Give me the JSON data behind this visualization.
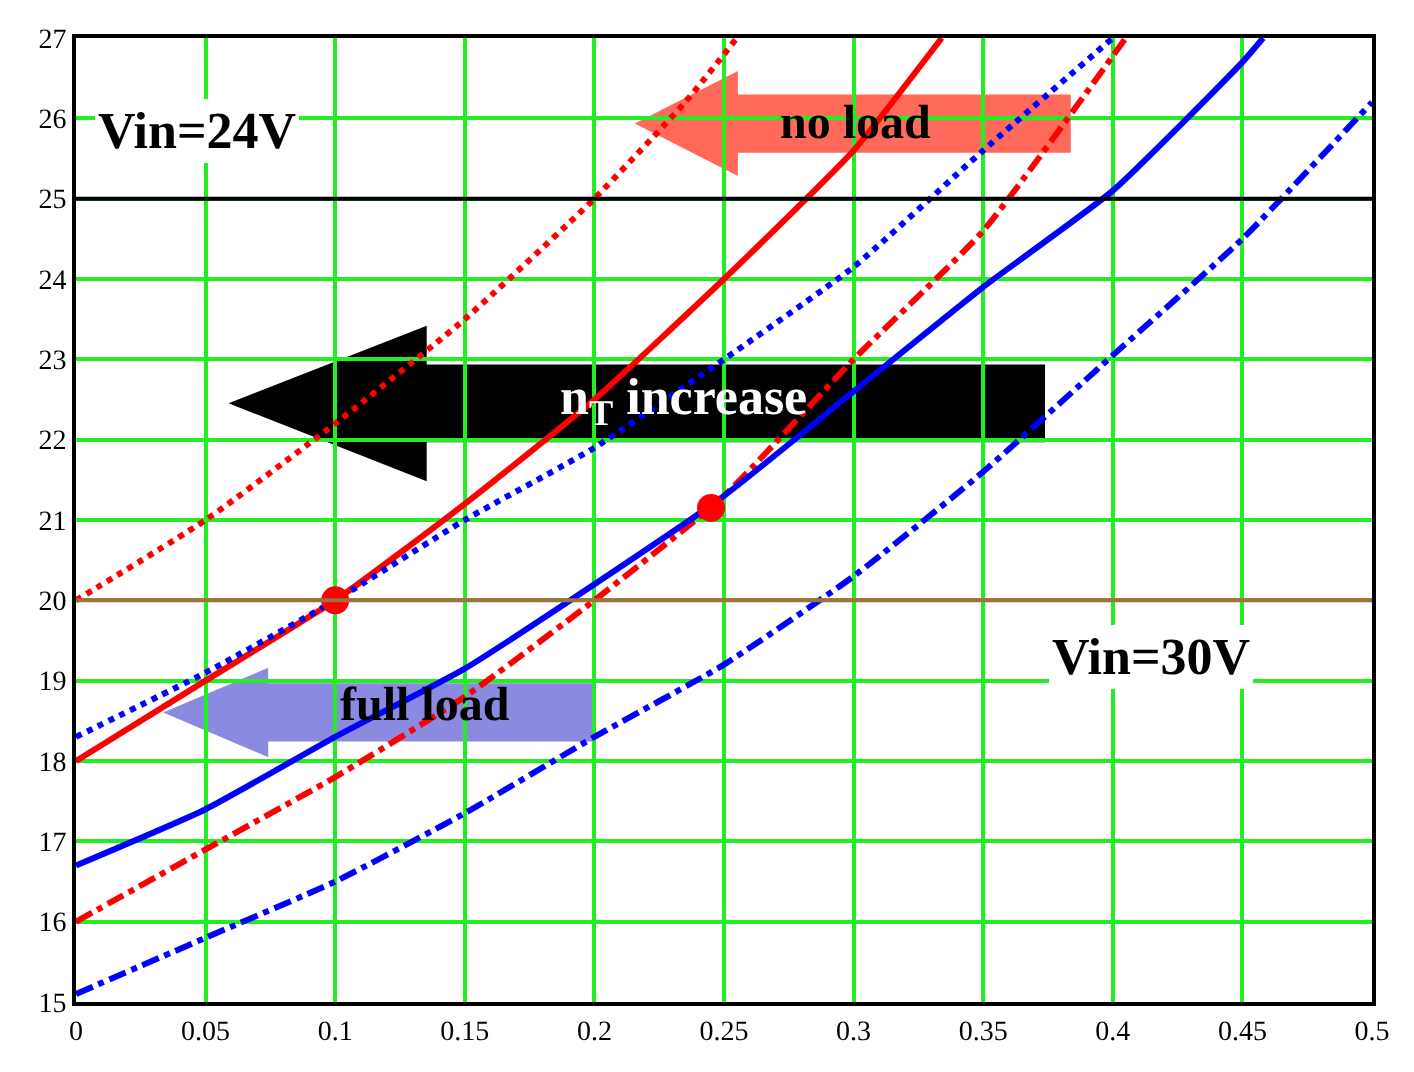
{
  "chart_data": {
    "type": "line",
    "xlim": [
      0,
      0.5
    ],
    "ylim": [
      15,
      27
    ],
    "xticks": [
      0,
      0.05,
      0.1,
      0.15,
      0.2,
      0.25,
      0.3,
      0.35,
      0.4,
      0.45,
      0.5
    ],
    "yticks": [
      15,
      16,
      17,
      18,
      19,
      20,
      21,
      22,
      23,
      24,
      25,
      26,
      27
    ],
    "grid": true,
    "marker": "none",
    "series": [
      {
        "color": "#ff0000",
        "line_style": "dotted",
        "x": [
          0,
          0.05,
          0.1,
          0.15,
          0.2,
          0.235,
          0.255
        ],
        "values": [
          20,
          21,
          22.2,
          23.5,
          25,
          26.2,
          27
        ]
      },
      {
        "color": "#ff0000",
        "line_style": "solid",
        "x": [
          0,
          0.05,
          0.1,
          0.15,
          0.2,
          0.25,
          0.3,
          0.334
        ],
        "values": [
          18,
          19,
          20,
          21.2,
          22.5,
          24,
          25.6,
          27
        ]
      },
      {
        "color": "#0000ff",
        "line_style": "dotted",
        "x": [
          0,
          0.05,
          0.1,
          0.15,
          0.2,
          0.25,
          0.3,
          0.35,
          0.4
        ],
        "values": [
          18.3,
          19.1,
          20,
          21,
          21.9,
          23,
          24.15,
          25.6,
          27
        ]
      },
      {
        "color": "#ff0000",
        "line_style": "dashdot",
        "x": [
          0,
          0.05,
          0.1,
          0.15,
          0.2,
          0.25,
          0.3,
          0.35,
          0.405
        ],
        "values": [
          16,
          16.9,
          17.8,
          18.8,
          20,
          21.3,
          23,
          24.6,
          27
        ]
      },
      {
        "color": "#0000ff",
        "line_style": "solid",
        "x": [
          0,
          0.05,
          0.1,
          0.15,
          0.2,
          0.25,
          0.3,
          0.35,
          0.4,
          0.45,
          0.458
        ],
        "values": [
          16.7,
          17.4,
          18.3,
          19.15,
          20.2,
          21.3,
          22.6,
          23.9,
          25.1,
          26.7,
          27
        ]
      },
      {
        "color": "#0000ff",
        "line_style": "dashdot",
        "x": [
          0,
          0.05,
          0.1,
          0.15,
          0.2,
          0.25,
          0.3,
          0.35,
          0.4,
          0.45,
          0.5
        ],
        "values": [
          15.1,
          15.8,
          16.5,
          17.35,
          18.3,
          19.2,
          20.3,
          21.6,
          23.05,
          24.5,
          26.2
        ]
      },
      {
        "type": "scatter",
        "marker": "circle",
        "color": "#ff0000",
        "x": [
          0.1,
          0.245
        ],
        "values": [
          20,
          21.15
        ]
      }
    ],
    "ref_lines": [
      {
        "axis": "y",
        "value": 25,
        "color": "#000000"
      },
      {
        "axis": "y",
        "value": 20,
        "color": "#a0703c"
      }
    ],
    "annotations": [
      "Vin=24V",
      "no load",
      "n$_{T}$ increase",
      "full load",
      "Vin=30V"
    ]
  }
}
